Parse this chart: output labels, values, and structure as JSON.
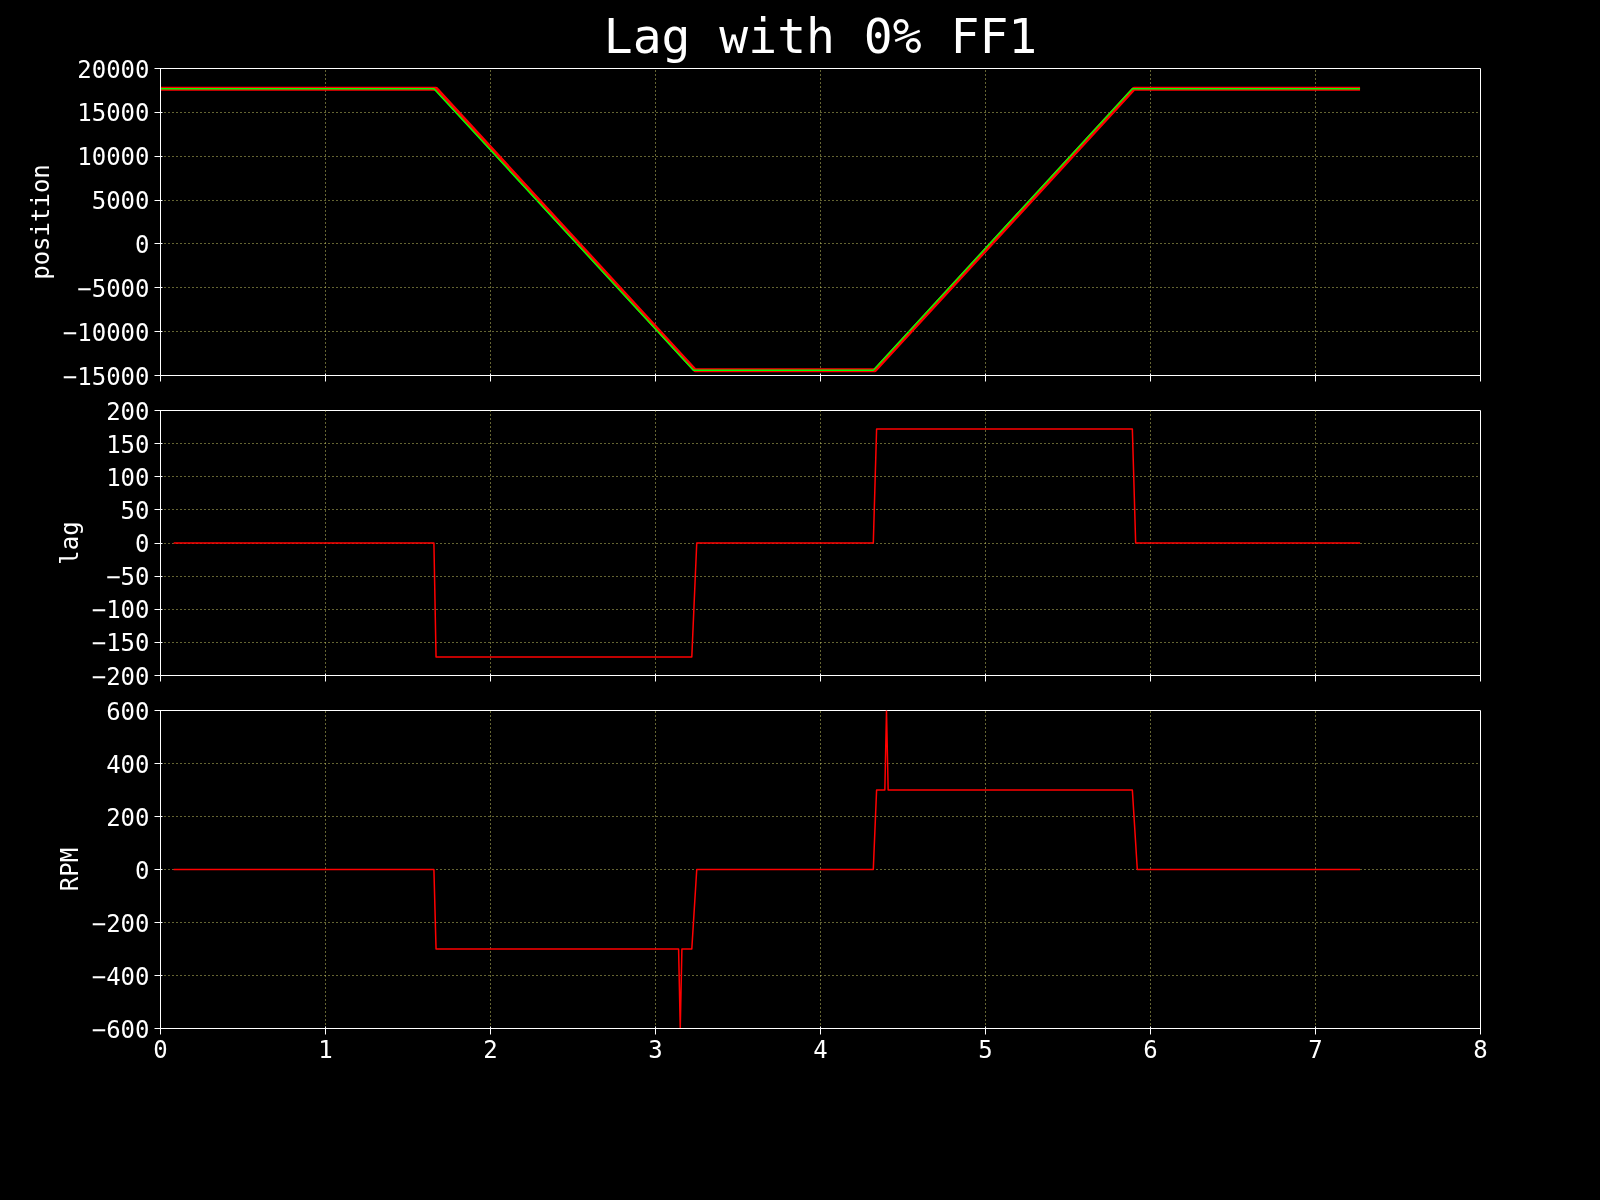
{
  "chart_data": [
    {
      "type": "line",
      "title": "Lag with 0% FF1",
      "ylabel": "position",
      "xlim": [
        0,
        8
      ],
      "xticks": [
        0,
        1,
        2,
        3,
        4,
        5,
        6,
        7,
        8
      ],
      "ylim": [
        -15000,
        20000
      ],
      "yticks": [
        -15000,
        -10000,
        -5000,
        0,
        5000,
        10000,
        15000,
        20000
      ],
      "grid": true,
      "tick_labels": "y",
      "series": [
        {
          "color": "#ff0000",
          "x": [
            0,
            1.67,
            3.24,
            4.33,
            5.9,
            7.27
          ],
          "values": [
            17700,
            17700,
            -14400,
            -14400,
            17700,
            17700
          ]
        },
        {
          "color": "#00ff00",
          "x": [
            0,
            1.657,
            3.23,
            4.32,
            5.89,
            7.27
          ],
          "values": [
            17700,
            17700,
            -14400,
            -14400,
            17700,
            17700
          ]
        }
      ]
    },
    {
      "type": "line",
      "ylabel": "lag",
      "xlim": [
        0,
        8
      ],
      "xticks": [
        0,
        1,
        2,
        3,
        4,
        5,
        6,
        7,
        8
      ],
      "ylim": [
        -200,
        200
      ],
      "yticks": [
        -200,
        -150,
        -100,
        -50,
        0,
        50,
        100,
        150,
        200
      ],
      "grid": true,
      "tick_labels": "y",
      "series": [
        {
          "color": "#ff0000",
          "x": [
            0.08,
            1.657,
            1.67,
            3.22,
            3.25,
            4.32,
            4.34,
            5.89,
            5.91,
            7.27
          ],
          "values": [
            0,
            0,
            -172,
            -172,
            0,
            0,
            172,
            172,
            0,
            0
          ]
        }
      ]
    },
    {
      "type": "line",
      "ylabel": "RPM",
      "xlim": [
        0,
        8
      ],
      "xticks": [
        0,
        1,
        2,
        3,
        4,
        5,
        6,
        7,
        8
      ],
      "ylim": [
        -600,
        600
      ],
      "yticks": [
        -600,
        -400,
        -200,
        0,
        200,
        400,
        600
      ],
      "grid": true,
      "series": [
        {
          "color": "#ff0000",
          "x": [
            0.08,
            1.657,
            1.67,
            3.14,
            3.15,
            3.16,
            3.22,
            3.25,
            4.32,
            4.34,
            4.39,
            4.4,
            4.41,
            5.89,
            5.92,
            7.27
          ],
          "values": [
            0,
            0,
            -300,
            -300,
            -600,
            -300,
            -300,
            0,
            0,
            300,
            300,
            600,
            300,
            300,
            0,
            0
          ]
        }
      ]
    }
  ]
}
